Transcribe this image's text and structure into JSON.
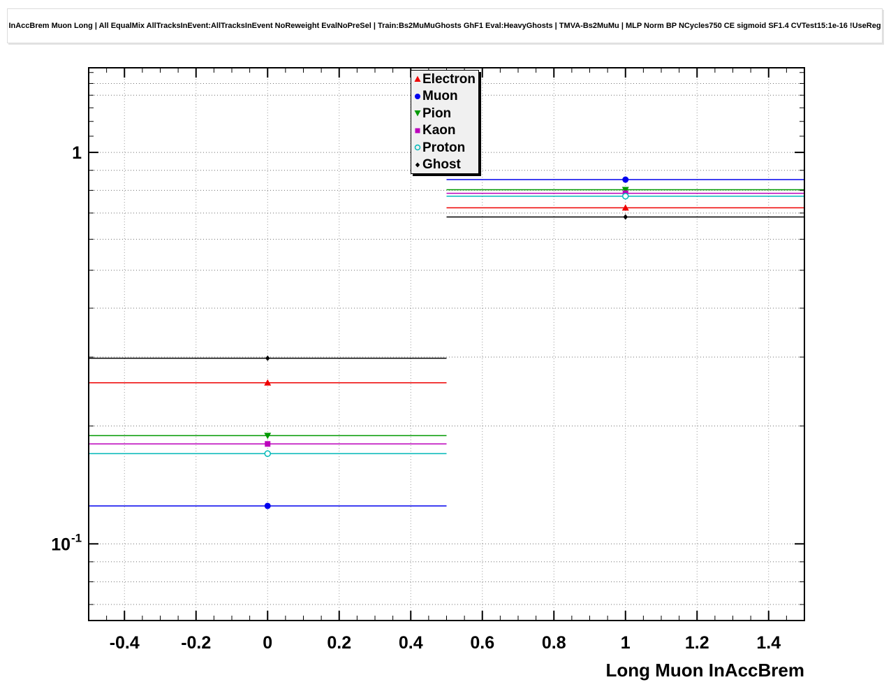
{
  "chart_data": {
    "type": "line",
    "title": "InAccBrem Muon Long | All EqualMix AllTracksInEvent:AllTracksInEvent NoReweight EvalNoPreSel | Train:Bs2MuMuGhosts GhF1 Eval:HeavyGhosts | TMVA-Bs2MuMu | MLP Norm BP NCycles750 CE sigmoid SF1.4 CVTest15:1e-16 !UseReg",
    "xlabel": "Long Muon InAccBrem",
    "ylabel": "",
    "yscale": "log",
    "xlim": [
      -0.5,
      1.5
    ],
    "ylim": [
      0.0637,
      1.645
    ],
    "x_ticks": [
      -0.4,
      -0.2,
      0,
      0.2,
      0.4,
      0.6,
      0.8,
      1.0,
      1.2,
      1.4
    ],
    "x_tick_labels": [
      "-0.4",
      "-0.2",
      "0",
      "0.2",
      "0.4",
      "0.6",
      "0.8",
      "1",
      "1.2",
      "1.4"
    ],
    "x_minor_step": 0.05,
    "y_ticks": [
      {
        "v": 1,
        "label": "1",
        "exp": ""
      },
      {
        "v": 0.1,
        "label": "10",
        "exp": "-1"
      }
    ],
    "y_minor_ticks": [
      0.07,
      0.08,
      0.09,
      0.2,
      0.3,
      0.4,
      0.5,
      0.6,
      0.7,
      0.8,
      0.9,
      1.1,
      1.2,
      1.3,
      1.4,
      1.5,
      1.6
    ],
    "y_gridlines": [
      0.07,
      0.08,
      0.09,
      0.1,
      0.2,
      0.3,
      0.4,
      0.5,
      0.6,
      0.7,
      0.8,
      0.9,
      1.0,
      1.4,
      1.5
    ],
    "grid": true,
    "legend_position": "top-center",
    "bins": [
      {
        "x_low": -0.5,
        "x_high": 0.5,
        "x_center": 0
      },
      {
        "x_low": 0.5,
        "x_high": 1.5,
        "x_center": 1
      }
    ],
    "series": [
      {
        "name": "Electron",
        "color": "#ee0000",
        "marker": "triangle-up",
        "values": [
          0.258,
          0.722
        ]
      },
      {
        "name": "Muon",
        "color": "#0000ee",
        "marker": "circle",
        "values": [
          0.125,
          0.852
        ]
      },
      {
        "name": "Pion",
        "color": "#009900",
        "marker": "triangle-down",
        "values": [
          0.189,
          0.803
        ]
      },
      {
        "name": "Kaon",
        "color": "#bb00bb",
        "marker": "square",
        "values": [
          0.18,
          0.786
        ]
      },
      {
        "name": "Proton",
        "color": "#00b8b8",
        "marker": "circle-open",
        "values": [
          0.17,
          0.773
        ]
      },
      {
        "name": "Ghost",
        "color": "#000000",
        "marker": "diamond",
        "values": [
          0.298,
          0.684
        ]
      }
    ]
  }
}
